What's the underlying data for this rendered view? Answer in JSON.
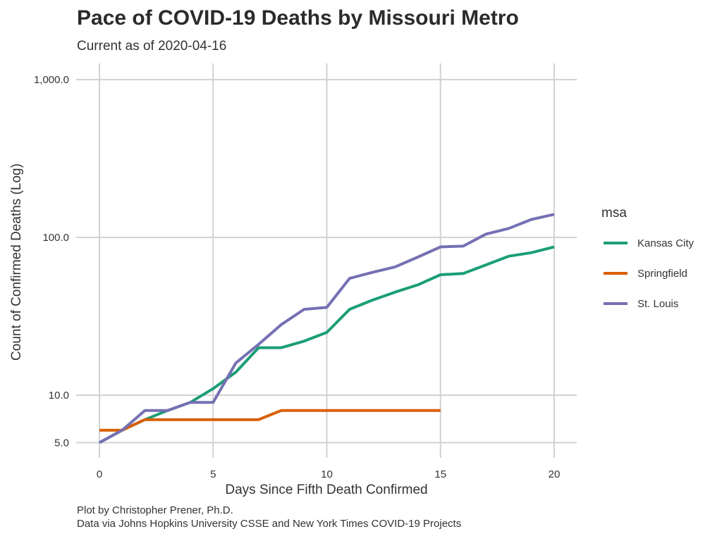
{
  "chart_data": {
    "type": "line",
    "title": "Pace of COVID-19 Deaths by Missouri Metro",
    "subtitle": "Current as of 2020-04-16",
    "xlabel": "Days Since Fifth Death Confirmed",
    "ylabel": "Count of Confirmed Deaths (Log)",
    "caption": [
      "Plot by Christopher Prener, Ph.D.",
      "Data via Johns Hopkins University CSSE and New York Times COVID-19 Projects"
    ],
    "y_scale": "log10",
    "xlim": [
      0,
      20
    ],
    "ylim": [
      5,
      1000
    ],
    "x_ticks": [
      0,
      5,
      10,
      15,
      20
    ],
    "x_tick_labels": [
      "0",
      "5",
      "10",
      "15",
      "20"
    ],
    "y_ticks": [
      5,
      10,
      100,
      1000
    ],
    "y_tick_labels": [
      "5.0",
      "10.0",
      "100.0",
      "1,000.0"
    ],
    "grid": true,
    "legend": {
      "title": "msa",
      "position": "right"
    },
    "series": [
      {
        "name": "Kansas City",
        "color": "#1b9e77",
        "x": [
          0,
          1,
          2,
          3,
          4,
          5,
          6,
          7,
          8,
          9,
          10,
          11,
          12,
          13,
          14,
          15,
          16,
          17,
          18,
          19,
          20
        ],
        "y": [
          5,
          6,
          7,
          8,
          9,
          11,
          14,
          20,
          20,
          22,
          25,
          35,
          40,
          45,
          50,
          58,
          59,
          67,
          76,
          80,
          87
        ]
      },
      {
        "name": "Springfield",
        "color": "#d95f02",
        "x": [
          0,
          1,
          2,
          3,
          4,
          5,
          6,
          7,
          8,
          9,
          10,
          11,
          12,
          13,
          14,
          15
        ],
        "y": [
          6,
          6,
          7,
          7,
          7,
          7,
          7,
          7,
          8,
          8,
          8,
          8,
          8,
          8,
          8,
          8
        ]
      },
      {
        "name": "St. Louis",
        "color": "#7570b3",
        "x": [
          0,
          1,
          2,
          3,
          4,
          5,
          6,
          7,
          8,
          9,
          10,
          11,
          12,
          13,
          14,
          15,
          16,
          17,
          18,
          19,
          20
        ],
        "y": [
          5,
          6,
          8,
          8,
          9,
          9,
          16,
          21,
          28,
          35,
          36,
          55,
          60,
          65,
          75,
          87,
          88,
          105,
          114,
          130,
          140
        ]
      }
    ]
  }
}
